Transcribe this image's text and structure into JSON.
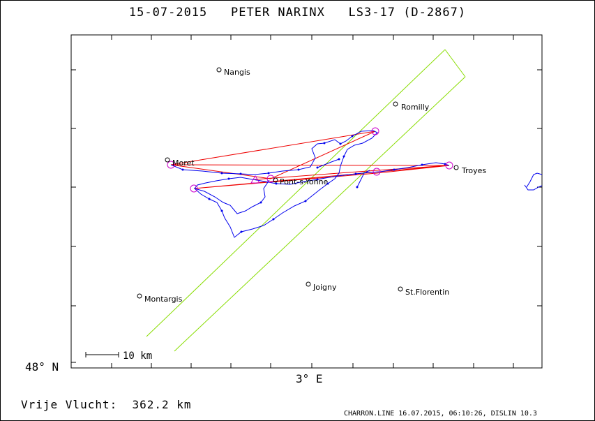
{
  "header": {
    "date": "15-07-2015",
    "pilot": "PETER NARINX",
    "glider": "LS3-17 (D-2867)"
  },
  "map": {
    "y_axis_label": "48° N",
    "x_axis_label": "3° E",
    "scale_label": "10 km",
    "places": [
      {
        "name": "Nangis"
      },
      {
        "name": "Romilly"
      },
      {
        "name": "Moret"
      },
      {
        "name": "Troyes"
      },
      {
        "name": "Pont-s-Yonne"
      },
      {
        "name": "Montargis"
      },
      {
        "name": "Joigny"
      },
      {
        "name": "St.Florentin"
      }
    ],
    "colors": {
      "track": "#0000ee",
      "task": "#ee0000",
      "airspace": "#88dd00",
      "turnpoint": "#cc00cc"
    }
  },
  "footer": {
    "distance_label": "Vrije Vlucht:",
    "distance_value": "362.2 km",
    "credits": "CHARRON.LINE 16.07.2015, 06:10:26, DISLIN 10.3"
  }
}
